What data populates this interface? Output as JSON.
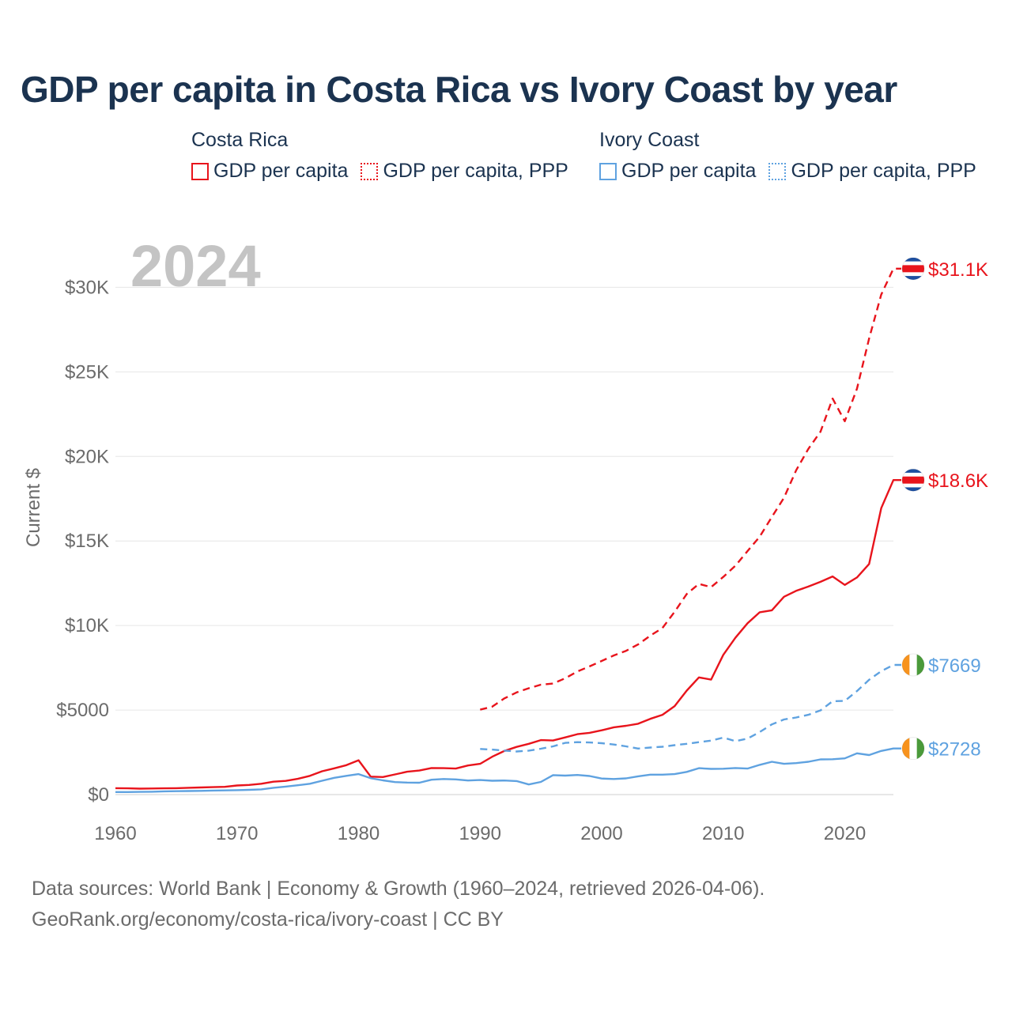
{
  "title": "GDP per capita in Costa Rica vs Ivory Coast by year",
  "colors": {
    "costa_rica": "#e8141c",
    "ivory_coast": "#5fa2e0",
    "axis_text": "#6b6b6b",
    "grid": "#e6e6e6",
    "year_label": "#c4c4c4",
    "title": "#1b3350"
  },
  "legend": {
    "groups": [
      {
        "name": "Costa Rica",
        "items": [
          {
            "label": "GDP per capita",
            "style": "solid"
          },
          {
            "label": "GDP per capita, PPP",
            "style": "dotted"
          }
        ]
      },
      {
        "name": "Ivory Coast",
        "items": [
          {
            "label": "GDP per capita",
            "style": "solid"
          },
          {
            "label": "GDP per capita, PPP",
            "style": "dotted"
          }
        ]
      }
    ]
  },
  "footer": {
    "line1": "Data sources: World Bank | Economy & Growth (1960–2024, retrieved 2026-04-06).",
    "line2": "GeoRank.org/economy/costa-rica/ivory-coast | CC BY"
  },
  "chart_data": {
    "type": "line",
    "year_label": "2024",
    "ylabel": "Current $",
    "xlim": [
      1960,
      2024
    ],
    "ylim": [
      0,
      32000
    ],
    "xticks": [
      {
        "value": 1960,
        "label": "1960"
      },
      {
        "value": 1970,
        "label": "1970"
      },
      {
        "value": 1980,
        "label": "1980"
      },
      {
        "value": 1990,
        "label": "1990"
      },
      {
        "value": 2000,
        "label": "2000"
      },
      {
        "value": 2010,
        "label": "2010"
      },
      {
        "value": 2020,
        "label": "2020"
      }
    ],
    "yticks": [
      {
        "value": 0,
        "label": "$0"
      },
      {
        "value": 5000,
        "label": "$5000"
      },
      {
        "value": 10000,
        "label": "$10K"
      },
      {
        "value": 15000,
        "label": "$15K"
      },
      {
        "value": 20000,
        "label": "$20K"
      },
      {
        "value": 25000,
        "label": "$25K"
      },
      {
        "value": 30000,
        "label": "$30K"
      }
    ],
    "series": [
      {
        "name": "Costa Rica GDP per capita",
        "country": "costa_rica",
        "dash": "solid",
        "end_label": "$18.6K",
        "flag": "costa-rica",
        "x": [
          1960,
          1961,
          1962,
          1963,
          1964,
          1965,
          1966,
          1967,
          1968,
          1969,
          1970,
          1971,
          1972,
          1973,
          1974,
          1975,
          1976,
          1977,
          1978,
          1979,
          1980,
          1981,
          1982,
          1983,
          1984,
          1985,
          1986,
          1987,
          1988,
          1989,
          1990,
          1991,
          1992,
          1993,
          1994,
          1995,
          1996,
          1997,
          1998,
          1999,
          2000,
          2001,
          2002,
          2003,
          2004,
          2005,
          2006,
          2007,
          2008,
          2009,
          2010,
          2011,
          2012,
          2013,
          2014,
          2015,
          2016,
          2017,
          2018,
          2019,
          2020,
          2021,
          2022,
          2023,
          2024
        ],
        "y": [
          380,
          370,
          350,
          360,
          370,
          380,
          400,
          420,
          440,
          460,
          540,
          570,
          640,
          760,
          810,
          930,
          1110,
          1380,
          1550,
          1740,
          2030,
          1060,
          1040,
          1190,
          1350,
          1420,
          1570,
          1560,
          1540,
          1720,
          1820,
          2240,
          2580,
          2820,
          3000,
          3220,
          3200,
          3380,
          3570,
          3650,
          3800,
          3980,
          4070,
          4190,
          4480,
          4720,
          5230,
          6150,
          6930,
          6800,
          8260,
          9270,
          10130,
          10780,
          10900,
          11700,
          12050,
          12300,
          12580,
          12900,
          12400,
          12840,
          13640,
          16940,
          18600
        ]
      },
      {
        "name": "Costa Rica GDP per capita, PPP",
        "country": "costa_rica",
        "dash": "dashed",
        "end_label": "$31.1K",
        "flag": "costa-rica",
        "x": [
          1990,
          1991,
          1992,
          1993,
          1994,
          1995,
          1996,
          1997,
          1998,
          1999,
          2000,
          2001,
          2002,
          2003,
          2004,
          2005,
          2006,
          2007,
          2008,
          2009,
          2010,
          2011,
          2012,
          2013,
          2014,
          2015,
          2016,
          2017,
          2018,
          2019,
          2020,
          2021,
          2022,
          2023,
          2024
        ],
        "y": [
          5020,
          5200,
          5690,
          6040,
          6290,
          6500,
          6570,
          6880,
          7280,
          7580,
          7900,
          8230,
          8500,
          8880,
          9400,
          9850,
          10810,
          11860,
          12460,
          12270,
          12870,
          13530,
          14400,
          15250,
          16420,
          17550,
          19180,
          20440,
          21460,
          23420,
          22080,
          24000,
          26980,
          29570,
          31100
        ]
      },
      {
        "name": "Ivory Coast GDP per capita",
        "country": "ivory_coast",
        "dash": "solid",
        "end_label": "$2728",
        "flag": "ivory-coast",
        "x": [
          1960,
          1961,
          1962,
          1963,
          1964,
          1965,
          1966,
          1967,
          1968,
          1969,
          1970,
          1971,
          1972,
          1973,
          1974,
          1975,
          1976,
          1977,
          1978,
          1979,
          1980,
          1981,
          1982,
          1983,
          1984,
          1985,
          1986,
          1987,
          1988,
          1989,
          1990,
          1991,
          1992,
          1993,
          1994,
          1995,
          1996,
          1997,
          1998,
          1999,
          2000,
          2001,
          2002,
          2003,
          2004,
          2005,
          2006,
          2007,
          2008,
          2009,
          2010,
          2011,
          2012,
          2013,
          2014,
          2015,
          2016,
          2017,
          2018,
          2019,
          2020,
          2021,
          2022,
          2023,
          2024
        ],
        "y": [
          150,
          150,
          160,
          170,
          190,
          200,
          210,
          220,
          240,
          250,
          260,
          280,
          310,
          400,
          470,
          550,
          640,
          820,
          990,
          1110,
          1210,
          970,
          840,
          740,
          710,
          700,
          880,
          920,
          900,
          830,
          860,
          820,
          830,
          800,
          600,
          750,
          1150,
          1120,
          1160,
          1100,
          950,
          920,
          960,
          1080,
          1180,
          1180,
          1210,
          1340,
          1560,
          1520,
          1530,
          1570,
          1540,
          1760,
          1940,
          1820,
          1860,
          1940,
          2080,
          2090,
          2140,
          2440,
          2340,
          2580,
          2728
        ]
      },
      {
        "name": "Ivory Coast GDP per capita, PPP",
        "country": "ivory_coast",
        "dash": "dashed",
        "end_label": "$7669",
        "flag": "ivory-coast",
        "x": [
          1990,
          1991,
          1992,
          1993,
          1994,
          1995,
          1996,
          1997,
          1998,
          1999,
          2000,
          2001,
          2002,
          2003,
          2004,
          2005,
          2006,
          2007,
          2008,
          2009,
          2010,
          2011,
          2012,
          2013,
          2014,
          2015,
          2016,
          2017,
          2018,
          2019,
          2020,
          2021,
          2022,
          2023,
          2024
        ],
        "y": [
          2700,
          2660,
          2600,
          2550,
          2600,
          2710,
          2850,
          3060,
          3100,
          3080,
          3040,
          2960,
          2850,
          2720,
          2780,
          2830,
          2920,
          3000,
          3100,
          3190,
          3370,
          3160,
          3310,
          3700,
          4150,
          4440,
          4560,
          4720,
          4980,
          5520,
          5540,
          6120,
          6790,
          7300,
          7669
        ]
      }
    ]
  }
}
